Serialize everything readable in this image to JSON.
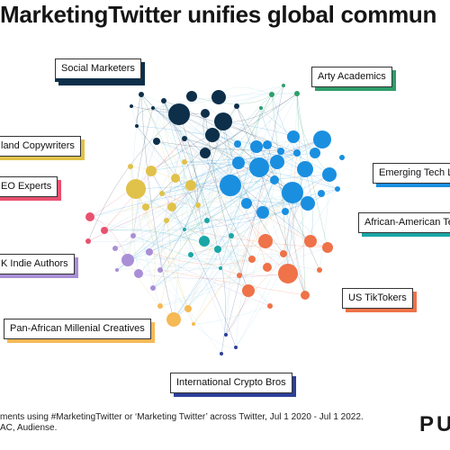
{
  "title": "MarketingTwitter unifies global commun",
  "communities": [
    {
      "id": "social_marketers",
      "label": "Social Marketers",
      "color": "#0d2f4a"
    },
    {
      "id": "arty_academics",
      "label": "Arty Academics",
      "color": "#2e9e6b"
    },
    {
      "id": "copywriters",
      "label": "land Copywriters",
      "color": "#e0c24a"
    },
    {
      "id": "emerging_tech",
      "label": "Emerging Tech Le",
      "color": "#1a8fe0"
    },
    {
      "id": "seo_experts",
      "label": "EO Experts",
      "color": "#e8516f"
    },
    {
      "id": "african_american",
      "label": "African-American Te",
      "color": "#1aa6a6"
    },
    {
      "id": "indie_authors",
      "label": "K Indie Authors",
      "color": "#a98fd6"
    },
    {
      "id": "us_tiktokers",
      "label": "US TikTokers",
      "color": "#ef7248"
    },
    {
      "id": "pan_african",
      "label": "Pan-African Millenial Creatives",
      "color": "#f5b955"
    },
    {
      "id": "crypto",
      "label": "International Crypto Bros",
      "color": "#2d3f99"
    }
  ],
  "footer": {
    "line1": "ments using #MarketingTwitter or ‘Marketing Twitter’ across Twitter, Jul 1 2020 - Jul 1 2022.",
    "line2": "AC, Audiense."
  },
  "brand": "PU"
}
